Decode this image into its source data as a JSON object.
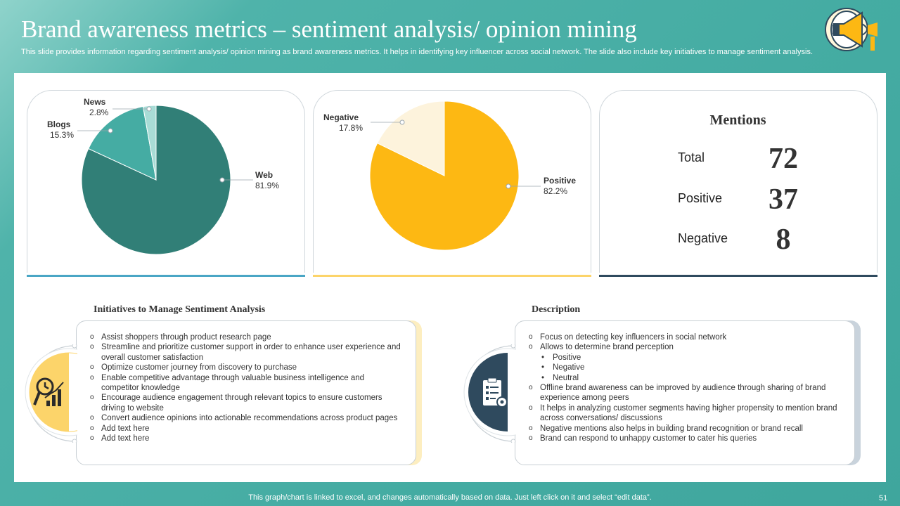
{
  "header": {
    "title": "Brand awareness metrics – sentiment analysis/ opinion mining",
    "subtitle": "This slide provides information regarding sentiment analysis/ opinion mining as brand awareness metrics. It helps in identifying key influencer across social network. The slide also include key initiatives to manage sentiment analysis."
  },
  "chart_data": [
    {
      "type": "pie",
      "categories": [
        "Web",
        "Blogs",
        "News"
      ],
      "values": [
        81.9,
        15.3,
        2.8
      ],
      "labels": [
        "81.9%",
        "15.3%",
        "2.8%"
      ],
      "colors": [
        "#317f77",
        "#45aca3",
        "#a8dcd6"
      ]
    },
    {
      "type": "pie",
      "categories": [
        "Positive",
        "Negative"
      ],
      "values": [
        82.2,
        17.8
      ],
      "labels": [
        "82.2%",
        "17.8%"
      ],
      "colors": [
        "#fdb813",
        "#fdf3dc"
      ]
    }
  ],
  "mentions": {
    "title": "Mentions",
    "rows": [
      {
        "label": "Total",
        "value": "72"
      },
      {
        "label": "Positive",
        "value": "37"
      },
      {
        "label": "Negative",
        "value": "8"
      }
    ]
  },
  "initiatives": {
    "heading": "Initiatives to Manage Sentiment Analysis",
    "items": [
      "Assist shoppers through product research page",
      "Streamline and prioritize customer support in order to enhance user experience and overall customer satisfaction",
      "Optimize customer journey from discovery to purchase",
      "Enable competitive advantage through valuable business intelligence and competitor knowledge",
      "Encourage audience engagement through relevant topics to ensure customers driving to website",
      "Convert audience opinions into actionable recommendations across product pages",
      "Add text here",
      "Add text here"
    ]
  },
  "description": {
    "heading": "Description",
    "items": [
      {
        "text": "Focus on detecting key influencers in social network"
      },
      {
        "text": "Allows to determine brand perception",
        "sub": [
          "Positive",
          "Negative",
          "Neutral"
        ]
      },
      {
        "text": "Offline brand awareness can be improved by audience through sharing of brand experience among peers"
      },
      {
        "text": "It helps in analyzing customer segments having higher propensity to mention brand across conversations/ discussions"
      },
      {
        "text": "Negative mentions also helps in building brand recognition or brand recall"
      },
      {
        "text": "Brand can respond to unhappy customer to cater his queries"
      }
    ]
  },
  "footer": {
    "note": "This graph/chart is linked to excel, and changes automatically based on data. Just left click on it and select “edit data”.",
    "page": "51"
  },
  "icons": {
    "logo": "megaphone-icon",
    "initiatives": "clock-chart-icon",
    "description": "clipboard-gear-icon"
  }
}
